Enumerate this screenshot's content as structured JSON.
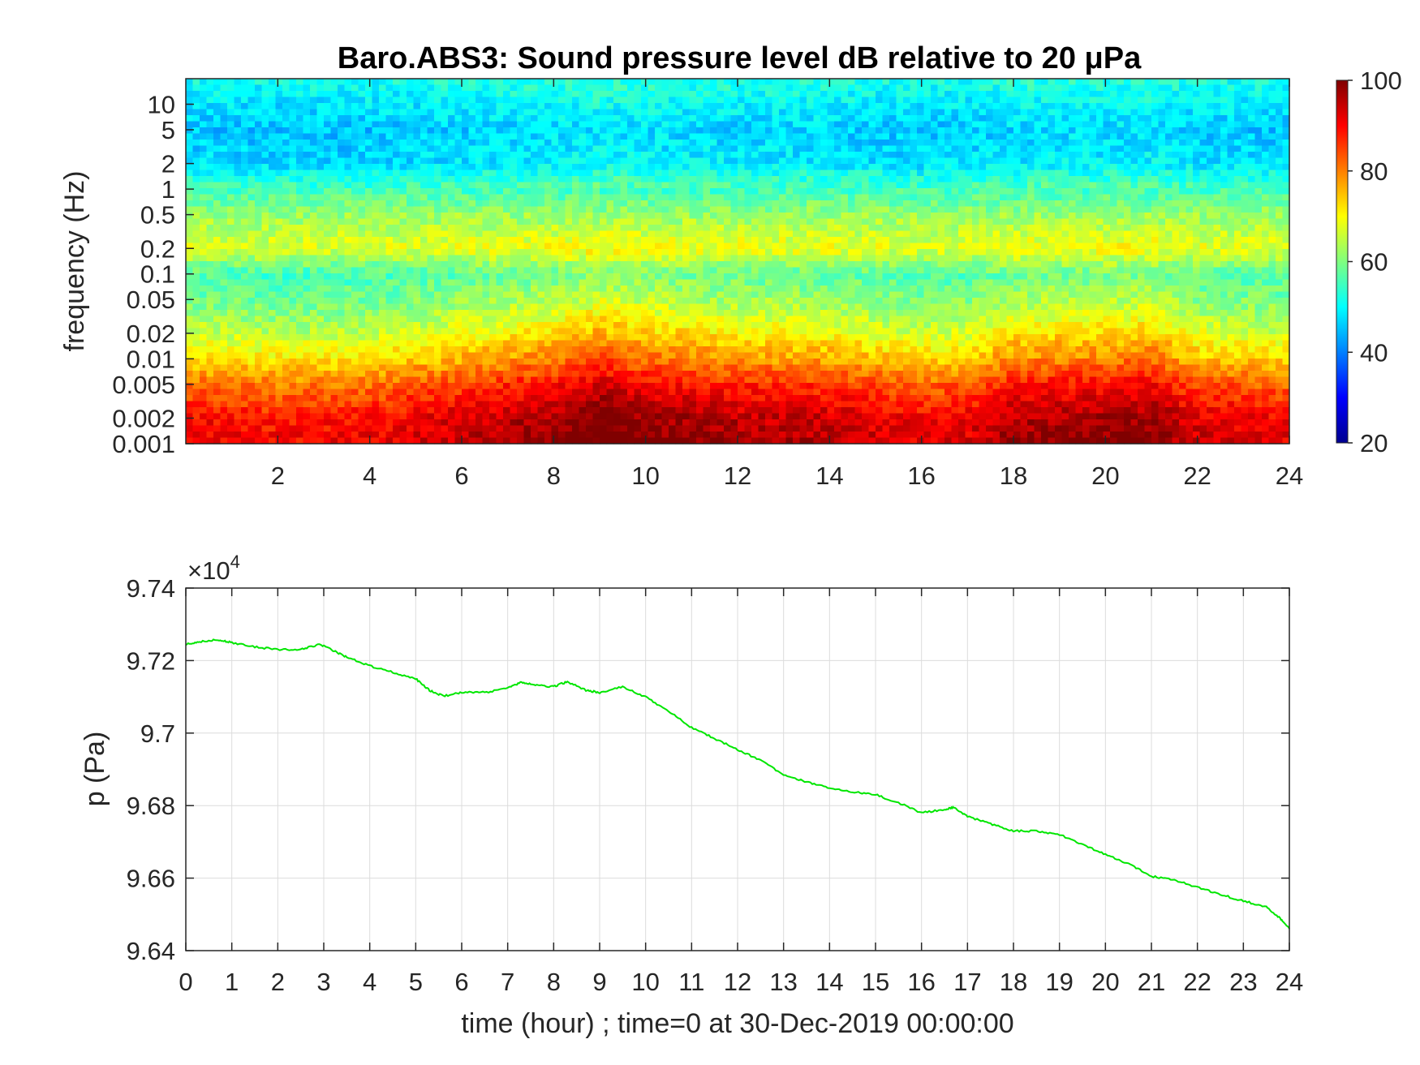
{
  "figure": {
    "title": "Baro.ABS3: Sound pressure level dB relative to 20 μPa"
  },
  "chart_data": [
    {
      "type": "heatmap",
      "title": "Baro.ABS3: Sound pressure level dB relative to 20 μPa",
      "xlabel": "",
      "ylabel": "frequency (Hz)",
      "xlim": [
        0,
        24
      ],
      "x_ticks": [
        2,
        4,
        6,
        8,
        10,
        12,
        14,
        16,
        18,
        20,
        22,
        24
      ],
      "y_scale": "log",
      "ylim": [
        0.001,
        20
      ],
      "y_ticks": [
        0.001,
        0.002,
        0.005,
        0.01,
        0.02,
        0.05,
        0.1,
        0.2,
        0.5,
        1,
        2,
        5,
        10
      ],
      "y_tick_labels": [
        "0.001",
        "0.002",
        "0.005",
        "0.01",
        "0.02",
        "0.05",
        "0.1",
        "0.2",
        "0.5",
        "1",
        "2",
        "5",
        "10"
      ],
      "colormap": "jet",
      "clim": [
        20,
        100
      ],
      "colorbar_ticks": [
        20,
        40,
        60,
        80,
        100
      ],
      "colorbar_placement": "right",
      "level_profile_db": [
        {
          "freq_hz": 20,
          "db": 51
        },
        {
          "freq_hz": 5,
          "db": 45
        },
        {
          "freq_hz": 2,
          "db": 47
        },
        {
          "freq_hz": 1,
          "db": 55
        },
        {
          "freq_hz": 0.5,
          "db": 62
        },
        {
          "freq_hz": 0.2,
          "db": 67
        },
        {
          "freq_hz": 0.1,
          "db": 55
        },
        {
          "freq_hz": 0.05,
          "db": 58
        },
        {
          "freq_hz": 0.02,
          "db": 64
        },
        {
          "freq_hz": 0.01,
          "db": 71
        },
        {
          "freq_hz": 0.005,
          "db": 80
        },
        {
          "freq_hz": 0.002,
          "db": 88
        },
        {
          "freq_hz": 0.001,
          "db": 90
        }
      ],
      "activity_by_hour": [
        {
          "hour": 0,
          "boost": 2
        },
        {
          "hour": 2,
          "boost": 0
        },
        {
          "hour": 4,
          "boost": 1
        },
        {
          "hour": 6,
          "boost": 5
        },
        {
          "hour": 8,
          "boost": 9
        },
        {
          "hour": 9,
          "boost": 13
        },
        {
          "hour": 10,
          "boost": 10
        },
        {
          "hour": 11,
          "boost": 9
        },
        {
          "hour": 12,
          "boost": 7
        },
        {
          "hour": 14,
          "boost": 6
        },
        {
          "hour": 16,
          "boost": 2
        },
        {
          "hour": 17,
          "boost": 3
        },
        {
          "hour": 18,
          "boost": 8
        },
        {
          "hour": 20,
          "boost": 9
        },
        {
          "hour": 21,
          "boost": 10
        },
        {
          "hour": 22,
          "boost": 4
        },
        {
          "hour": 24,
          "boost": 2
        }
      ]
    },
    {
      "type": "line",
      "title": "",
      "xlabel": "time (hour) ; time=0 at 30-Dec-2019 00:00:00",
      "ylabel": "p (Pa)",
      "xlim": [
        0,
        24
      ],
      "ylim": [
        96400,
        97400
      ],
      "x_ticks": [
        0,
        1,
        2,
        3,
        4,
        5,
        6,
        7,
        8,
        9,
        10,
        11,
        12,
        13,
        14,
        15,
        16,
        17,
        18,
        19,
        20,
        21,
        22,
        23,
        24
      ],
      "y_tick_values": [
        96400,
        96600,
        96800,
        97000,
        97200,
        97400
      ],
      "y_tick_labels": [
        "9.64",
        "9.66",
        "9.68",
        "9.7",
        "9.72",
        "9.74"
      ],
      "y_exponent_base": "×10",
      "y_exponent_power": "4",
      "grid": true,
      "series": [
        {
          "color": "#00e600",
          "x": [
            0,
            0.3,
            0.7,
            1.0,
            1.5,
            2.0,
            2.5,
            2.9,
            3.2,
            3.5,
            4.0,
            4.5,
            5.0,
            5.3,
            5.6,
            6.0,
            6.5,
            7.0,
            7.3,
            7.6,
            8.0,
            8.3,
            8.7,
            9.0,
            9.5,
            10.0,
            10.5,
            11.0,
            11.5,
            12.0,
            12.5,
            13.0,
            13.5,
            14.0,
            14.5,
            15.0,
            15.5,
            16.0,
            16.5,
            16.7,
            17.0,
            17.5,
            18.0,
            18.5,
            19.0,
            19.5,
            20.0,
            20.5,
            21.0,
            21.5,
            22.0,
            22.5,
            23.0,
            23.5,
            23.8,
            24.0
          ],
          "y": [
            97245,
            97252,
            97258,
            97250,
            97238,
            97230,
            97230,
            97245,
            97228,
            97210,
            97185,
            97168,
            97150,
            97118,
            97102,
            97112,
            97112,
            97124,
            97140,
            97132,
            97128,
            97142,
            97118,
            97112,
            97128,
            97100,
            97060,
            97015,
            96985,
            96955,
            96925,
            96885,
            96865,
            96848,
            96838,
            96830,
            96808,
            96780,
            96790,
            96795,
            96770,
            96750,
            96730,
            96730,
            96720,
            96692,
            96665,
            96640,
            96605,
            96595,
            96575,
            96555,
            96537,
            96520,
            96490,
            96460
          ]
        }
      ]
    }
  ]
}
